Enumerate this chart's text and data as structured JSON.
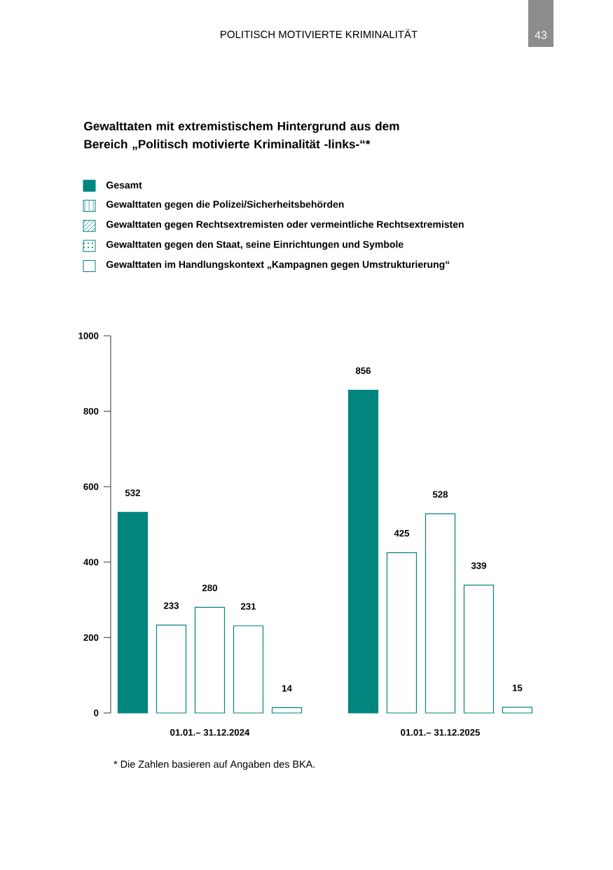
{
  "chart_data": {
    "type": "bar",
    "title": "Gewalttaten mit extremistischem Hintergrund aus dem Bereich „Politisch motivierte Kriminalität -links-“*",
    "categories": [
      "01.01.– 31.12.2024",
      "01.01.– 31.12.2025"
    ],
    "series": [
      {
        "name": "Gesamt",
        "color": "#00857f",
        "values": [
          532,
          856
        ]
      },
      {
        "name": "Gewalttaten gegen die Polizei/Sicherheitsbehörden",
        "color": "#00857f",
        "values": [
          233,
          425
        ]
      },
      {
        "name": "Gewalttaten gegen Rechtsextremisten oder vermeintliche Rechtsextremisten",
        "color": "#00857f",
        "values": [
          280,
          528
        ]
      },
      {
        "name": "Gewalttaten gegen den Staat, seine Einrichtungen und Symbole",
        "color": "#00857f",
        "values": [
          231,
          339
        ]
      },
      {
        "name": "Gewalttaten im Handlungskontext „Kampagnen gegen Umstrukturierung“",
        "color": "#00857f",
        "values": [
          14,
          15
        ]
      }
    ],
    "ylim": [
      0,
      1000
    ],
    "yticks": [
      0,
      200,
      400,
      600,
      800,
      1000
    ],
    "data_labels": true,
    "legend": "top",
    "annotations": [
      "POLITISCH MOTIVIERTE KRIMINALITÄT",
      "43",
      "* Die Zahlen basieren auf Angaben des BKA."
    ]
  }
}
